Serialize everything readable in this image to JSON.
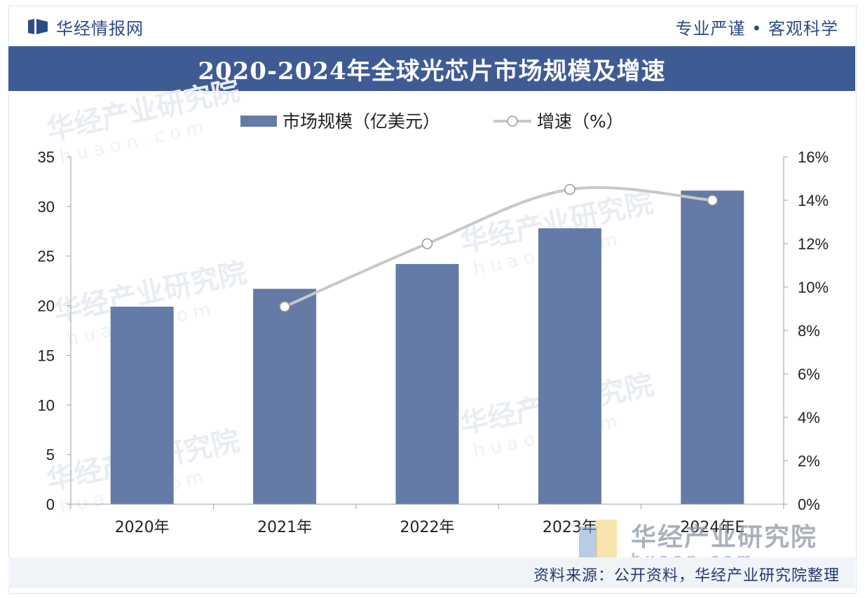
{
  "header": {
    "brand_name": "华经情报网",
    "motto": "专业严谨 • 客观科学"
  },
  "watermark": {
    "name": "华经产业研究院",
    "url": "huaon.com"
  },
  "source_text": "资料来源：公开资料，华经产业研究院整理",
  "colors": {
    "brand": "#2d4a84",
    "title_bar": "#3f5b94",
    "bar": "#637ba6",
    "line": "#c8c8c8"
  },
  "chart_data": {
    "type": "bar",
    "title": "2020-2024年全球光芯片市场规模及增速",
    "categories": [
      "2020年",
      "2021年",
      "2022年",
      "2023年",
      "2024年E"
    ],
    "series": [
      {
        "name": "市场规模（亿美元）",
        "type": "bar",
        "axis": "left",
        "values": [
          19.9,
          21.7,
          24.2,
          27.8,
          31.6
        ]
      },
      {
        "name": "增速（%）",
        "type": "line",
        "axis": "right",
        "values": [
          null,
          9.1,
          12.0,
          14.5,
          14.0
        ]
      }
    ],
    "y_left": {
      "min": 0,
      "max": 35,
      "ticks": [
        "0",
        "5",
        "10",
        "15",
        "20",
        "25",
        "30",
        "35"
      ]
    },
    "y_right": {
      "min": 0,
      "max": 16,
      "ticks": [
        "0%",
        "2%",
        "4%",
        "6%",
        "8%",
        "10%",
        "12%",
        "14%",
        "16%"
      ]
    },
    "legend": "top-center",
    "grid": false
  }
}
